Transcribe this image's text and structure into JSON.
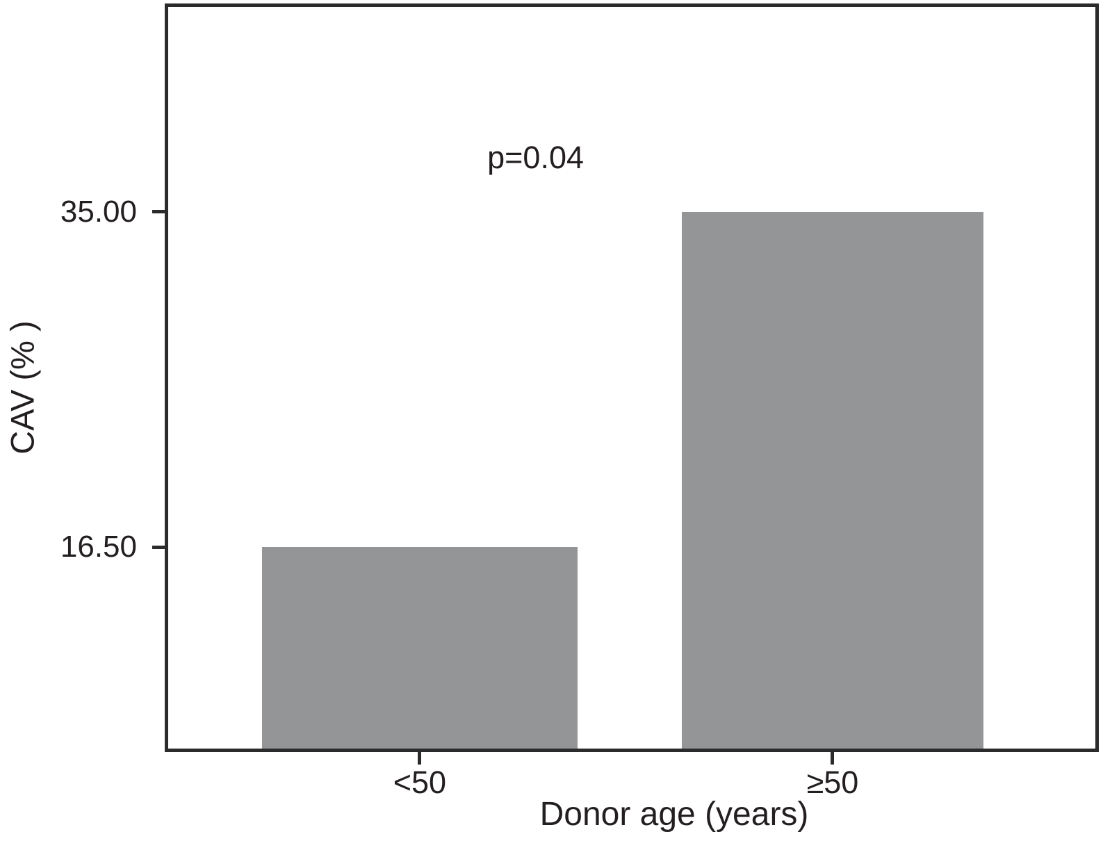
{
  "chart_data": {
    "type": "bar",
    "categories": [
      "<50",
      "≥50"
    ],
    "values": [
      16.5,
      35.0
    ],
    "series": [
      {
        "name": "CAV",
        "values": [
          16.5,
          35.0
        ]
      }
    ],
    "title": "",
    "xlabel": "Donor age (years)",
    "ylabel": "CAV (% )",
    "yticks": [
      {
        "value": 35.0,
        "label": "35.00"
      },
      {
        "value": 16.5,
        "label": "16.50"
      }
    ],
    "ylim": [
      5.2,
      46.5
    ],
    "grid": false,
    "legend_position": "none",
    "annotation": {
      "text": "p=0.04"
    },
    "colors": {
      "bar": "#949597",
      "axis": "#2b2b2b",
      "text": "#231f20",
      "background": "#ffffff"
    },
    "layout": {
      "bar_centers_frac": [
        0.273,
        0.715
      ],
      "bar_width_frac": [
        0.338,
        0.323
      ],
      "annotation_pos_frac": {
        "x": 0.397,
        "y": 0.206
      }
    }
  }
}
